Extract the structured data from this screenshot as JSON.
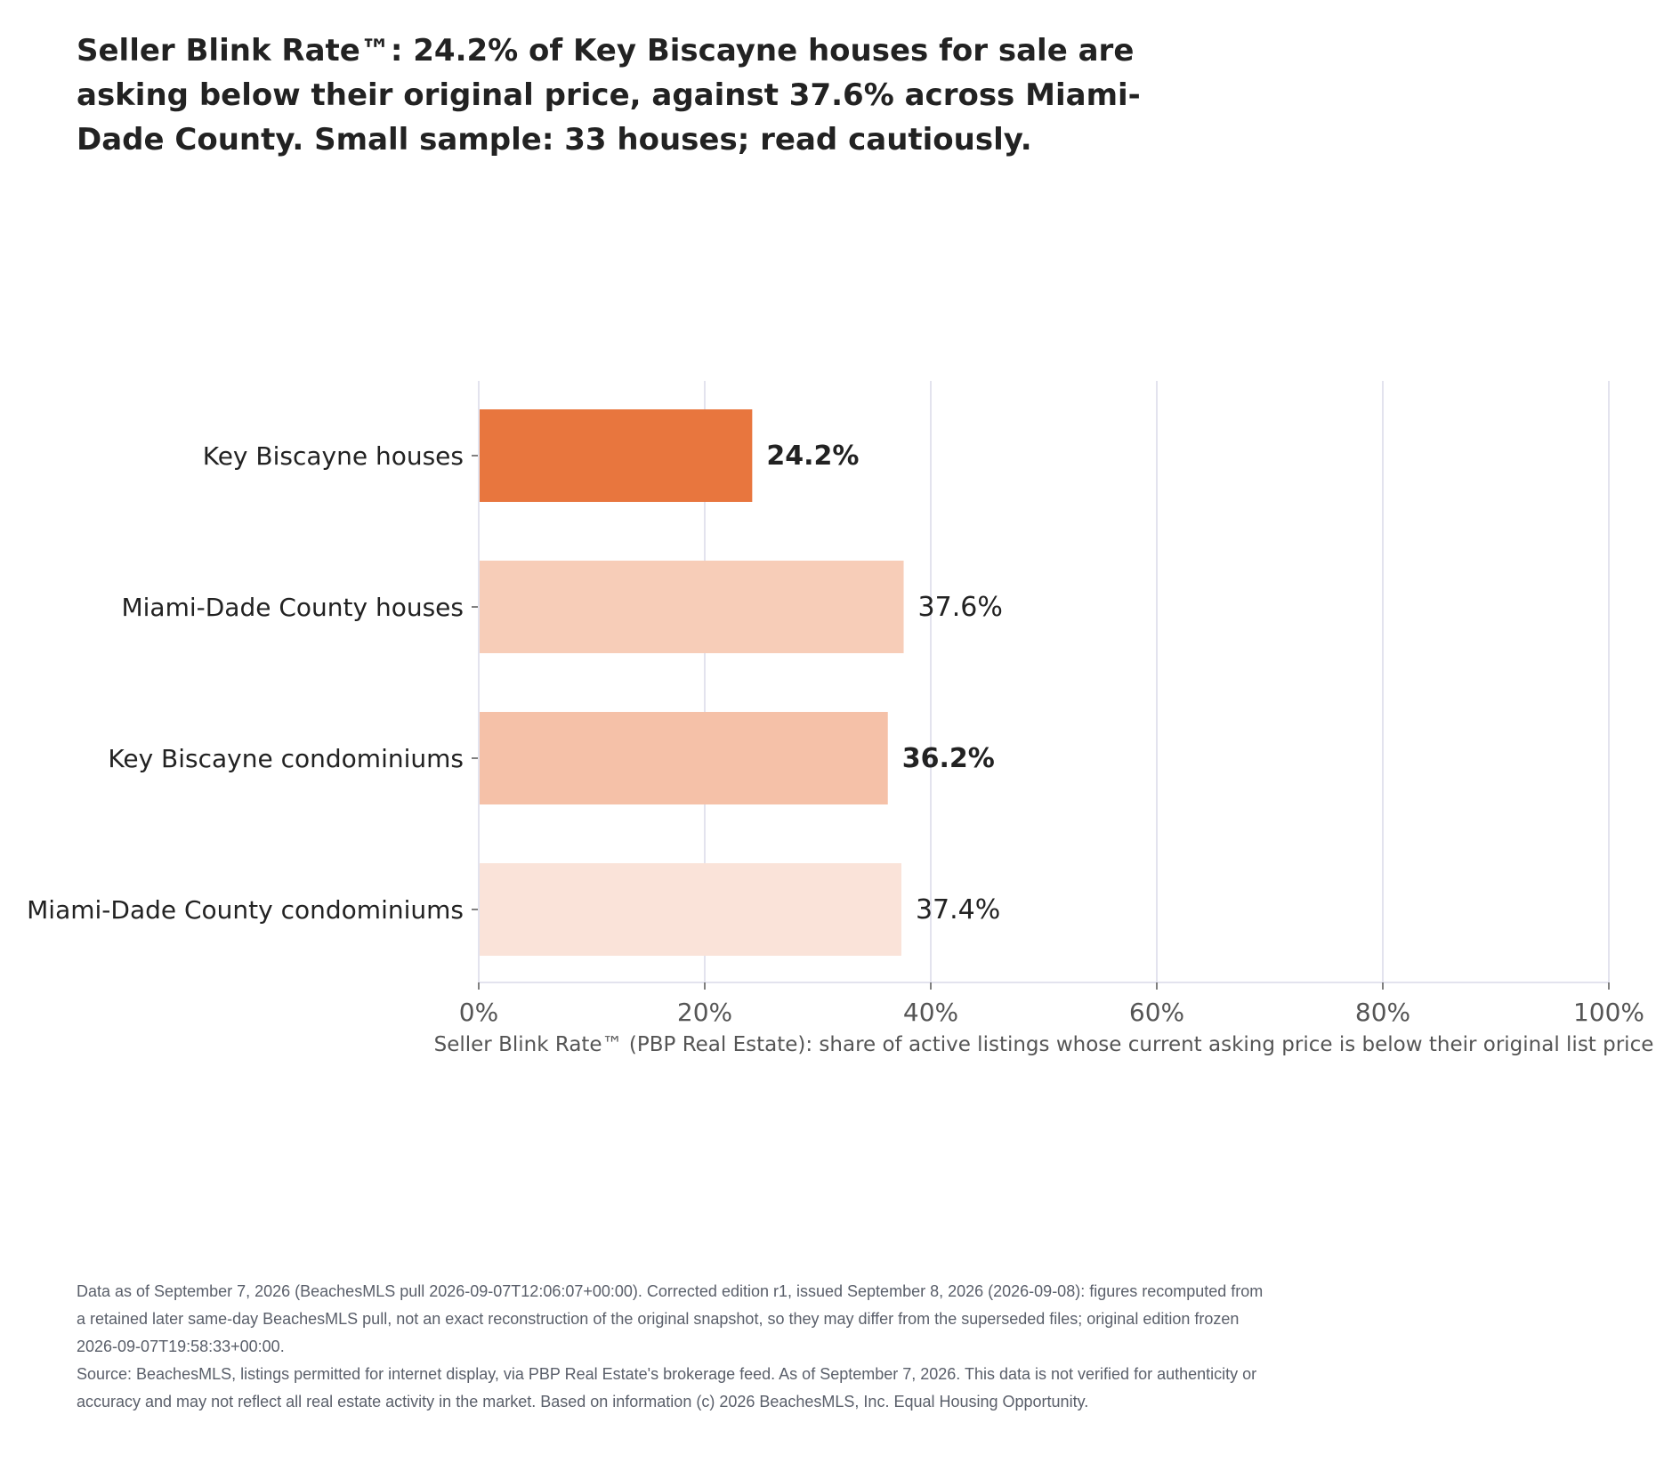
{
  "chart_data": {
    "type": "bar",
    "orientation": "horizontal",
    "title": "Seller Blink Rate™: 24.2% of Key Biscayne houses for sale are asking below their original price, against 37.6% across Miami-Dade County. Small sample: 33 houses; read cautiously.",
    "xlabel": "Seller Blink Rate™ (PBP Real Estate): share of active listings whose current asking price is below their original list price",
    "ylabel": "",
    "xlim": [
      0,
      100
    ],
    "x_ticks": [
      0,
      20,
      40,
      60,
      80,
      100
    ],
    "x_tick_labels": [
      "0%",
      "20%",
      "40%",
      "60%",
      "80%",
      "100%"
    ],
    "grid": "vertical",
    "categories": [
      "Key Biscayne houses",
      "Miami-Dade County houses",
      "Key Biscayne condominiums",
      "Miami-Dade County condominiums"
    ],
    "values": [
      24.2,
      37.6,
      36.2,
      37.4
    ],
    "value_labels": [
      "24.2%",
      "37.6%",
      "36.2%",
      "37.4%"
    ],
    "bold_labels": [
      true,
      false,
      true,
      false
    ],
    "colors": [
      "#e8763e",
      "#f7cdb8",
      "#f5c1a8",
      "#fae3d9"
    ]
  },
  "footnote": {
    "line1": "Data as of September 7, 2026 (BeachesMLS pull 2026-09-07T12:06:07+00:00). Corrected edition r1, issued September 8, 2026 (2026-09-08): figures recomputed from a retained later same-day BeachesMLS pull, not an exact reconstruction of the original snapshot, so they may differ from the superseded files; original edition frozen 2026-09-07T19:58:33+00:00.",
    "line2": "Source: BeachesMLS, listings permitted for internet display, via PBP Real Estate's brokerage feed. As of September 7, 2026. This data is not verified for authenticity or accuracy and may not reflect all real estate activity in the market. Based on information (c) 2026 BeachesMLS, Inc. Equal Housing Opportunity."
  }
}
